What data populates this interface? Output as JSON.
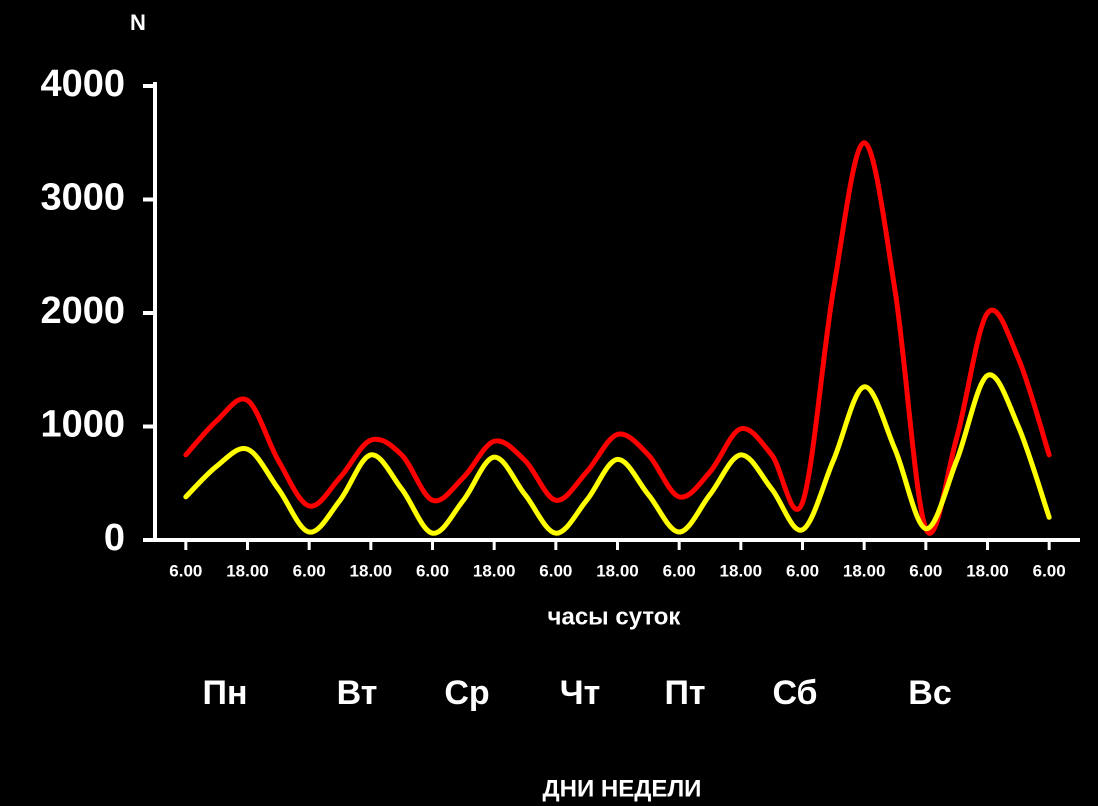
{
  "chart_data": {
    "type": "line",
    "y_label": "N",
    "x_label": "часы суток",
    "day_labels": [
      "Пн",
      "Вт",
      "Ср",
      "Чт",
      "Пт",
      "Сб",
      "Вс"
    ],
    "day_axis_label": "ДНИ НЕДЕЛИ",
    "x": [
      6,
      12,
      18,
      24,
      30,
      36,
      42,
      48,
      54,
      60,
      66,
      72,
      78,
      84,
      90,
      96,
      102,
      108,
      114,
      120,
      126,
      132,
      138,
      144,
      150,
      156,
      162,
      168,
      174
    ],
    "series": [
      {
        "color": "#ff0000",
        "values": [
          750,
          1050,
          1230,
          700,
          300,
          550,
          880,
          750,
          350,
          550,
          870,
          700,
          350,
          600,
          930,
          750,
          380,
          600,
          980,
          750,
          330,
          2200,
          3500,
          2200,
          100,
          900,
          2000,
          1600,
          750
        ]
      },
      {
        "color": "#ffff00",
        "values": [
          380,
          650,
          800,
          450,
          70,
          350,
          750,
          450,
          60,
          350,
          730,
          400,
          60,
          350,
          710,
          400,
          70,
          400,
          750,
          450,
          90,
          700,
          1350,
          800,
          100,
          700,
          1450,
          1000,
          200
        ]
      }
    ],
    "xlim": [
      0,
      180
    ],
    "xticks": [
      {
        "value": 6,
        "label": "6.00"
      },
      {
        "value": 18,
        "label": "18.00"
      },
      {
        "value": 30,
        "label": "6.00"
      },
      {
        "value": 42,
        "label": "18.00"
      },
      {
        "value": 54,
        "label": "6.00"
      },
      {
        "value": 66,
        "label": "18.00"
      },
      {
        "value": 78,
        "label": "6.00"
      },
      {
        "value": 90,
        "label": "18.00"
      },
      {
        "value": 102,
        "label": "6.00"
      },
      {
        "value": 114,
        "label": "18.00"
      },
      {
        "value": 126,
        "label": "6.00"
      },
      {
        "value": 138,
        "label": "18.00"
      },
      {
        "value": 150,
        "label": "6.00"
      },
      {
        "value": 162,
        "label": "18.00"
      },
      {
        "value": 174,
        "label": "6.00"
      }
    ],
    "ylim": [
      0,
      4000
    ],
    "yticks": [
      0,
      1000,
      2000,
      3000,
      4000
    ],
    "label_color": "#00dd00"
  }
}
